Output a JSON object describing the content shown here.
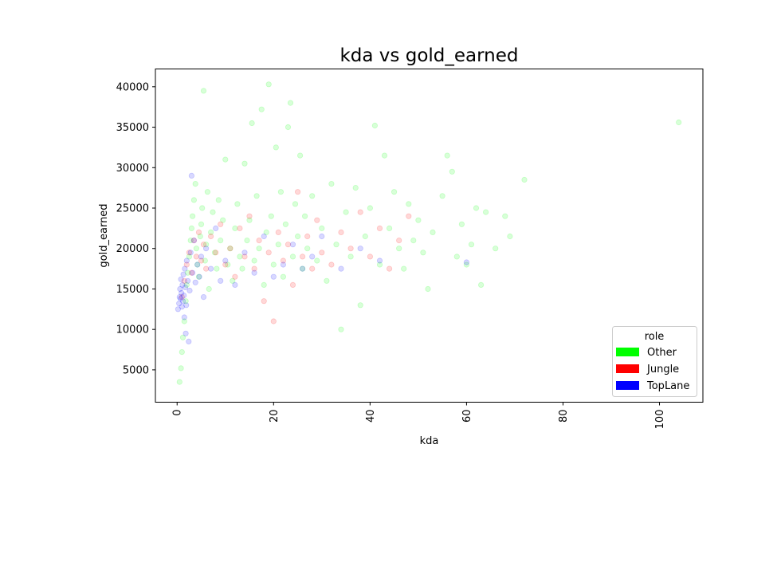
{
  "chart_data": {
    "type": "scatter",
    "title": "kda vs gold_earned",
    "xlabel": "kda",
    "ylabel": "gold_earned",
    "xlim": [
      -4.5,
      109
    ],
    "ylim": [
      1000,
      42200
    ],
    "xticks": [
      0,
      20,
      40,
      60,
      80,
      100
    ],
    "yticks": [
      5000,
      10000,
      15000,
      20000,
      25000,
      30000,
      35000,
      40000
    ],
    "legend": {
      "title": "role",
      "position": "lower right"
    },
    "marker_alpha": 0.07,
    "series": [
      {
        "name": "Other",
        "color": "#00ff00",
        "points": [
          [
            0.5,
            3500
          ],
          [
            0.8,
            5200
          ],
          [
            1.0,
            7200
          ],
          [
            1.2,
            9000
          ],
          [
            1.5,
            11000
          ],
          [
            1.8,
            13500
          ],
          [
            2.0,
            15500
          ],
          [
            2.2,
            17000
          ],
          [
            2.5,
            19000
          ],
          [
            2.8,
            21000
          ],
          [
            3.0,
            22500
          ],
          [
            3.2,
            24000
          ],
          [
            3.5,
            26000
          ],
          [
            3.8,
            28000
          ],
          [
            4.0,
            20000
          ],
          [
            4.2,
            18000
          ],
          [
            4.5,
            16500
          ],
          [
            4.8,
            21500
          ],
          [
            5.0,
            23000
          ],
          [
            5.2,
            25000
          ],
          [
            5.5,
            39500
          ],
          [
            5.8,
            18500
          ],
          [
            6.0,
            20500
          ],
          [
            6.3,
            27000
          ],
          [
            6.6,
            15000
          ],
          [
            7.0,
            22000
          ],
          [
            7.4,
            24500
          ],
          [
            7.8,
            19500
          ],
          [
            8.2,
            17500
          ],
          [
            8.6,
            26000
          ],
          [
            9.0,
            21000
          ],
          [
            9.5,
            23500
          ],
          [
            10.0,
            31000
          ],
          [
            10.5,
            18000
          ],
          [
            11.0,
            20000
          ],
          [
            11.5,
            16000
          ],
          [
            12.0,
            22500
          ],
          [
            12.5,
            25500
          ],
          [
            13.0,
            19000
          ],
          [
            13.5,
            17500
          ],
          [
            14.0,
            30500
          ],
          [
            14.5,
            21000
          ],
          [
            15.0,
            23500
          ],
          [
            15.5,
            35500
          ],
          [
            16.0,
            18500
          ],
          [
            16.5,
            26500
          ],
          [
            17.0,
            20000
          ],
          [
            17.5,
            37200
          ],
          [
            18.0,
            15500
          ],
          [
            18.5,
            22000
          ],
          [
            19.0,
            40300
          ],
          [
            19.5,
            24000
          ],
          [
            20.0,
            18000
          ],
          [
            20.5,
            32500
          ],
          [
            21.0,
            20500
          ],
          [
            21.5,
            27000
          ],
          [
            22.0,
            16500
          ],
          [
            22.5,
            23000
          ],
          [
            23.0,
            35000
          ],
          [
            23.5,
            38000
          ],
          [
            24.0,
            19000
          ],
          [
            24.5,
            25500
          ],
          [
            25.0,
            21500
          ],
          [
            25.5,
            31500
          ],
          [
            26.0,
            17500
          ],
          [
            26.5,
            24000
          ],
          [
            27.0,
            20000
          ],
          [
            28.0,
            26500
          ],
          [
            29.0,
            18500
          ],
          [
            30.0,
            22500
          ],
          [
            31.0,
            16000
          ],
          [
            32.0,
            28000
          ],
          [
            33.0,
            20500
          ],
          [
            34.0,
            10000
          ],
          [
            35.0,
            24500
          ],
          [
            36.0,
            19000
          ],
          [
            37.0,
            27500
          ],
          [
            38.0,
            13000
          ],
          [
            39.0,
            21500
          ],
          [
            40.0,
            25000
          ],
          [
            41.0,
            35200
          ],
          [
            42.0,
            18000
          ],
          [
            43.0,
            31500
          ],
          [
            44.0,
            22500
          ],
          [
            45.0,
            27000
          ],
          [
            46.0,
            20000
          ],
          [
            47.0,
            17500
          ],
          [
            48.0,
            25500
          ],
          [
            49.0,
            21000
          ],
          [
            50.0,
            23500
          ],
          [
            51.0,
            19500
          ],
          [
            52.0,
            15000
          ],
          [
            53.0,
            22000
          ],
          [
            55.0,
            26500
          ],
          [
            56.0,
            31500
          ],
          [
            57.0,
            29500
          ],
          [
            58.0,
            19000
          ],
          [
            59.0,
            23000
          ],
          [
            60.0,
            18000
          ],
          [
            61.0,
            20500
          ],
          [
            62.0,
            25000
          ],
          [
            63.0,
            15500
          ],
          [
            64.0,
            24500
          ],
          [
            66.0,
            20000
          ],
          [
            68.0,
            24000
          ],
          [
            69.0,
            21500
          ],
          [
            72.0,
            28500
          ],
          [
            104.0,
            35600
          ]
        ]
      },
      {
        "name": "Jungle",
        "color": "#ff0000",
        "points": [
          [
            1.0,
            14000
          ],
          [
            1.5,
            16000
          ],
          [
            2.0,
            18000
          ],
          [
            2.5,
            19500
          ],
          [
            3.0,
            17000
          ],
          [
            3.5,
            21000
          ],
          [
            4.0,
            19000
          ],
          [
            4.5,
            22000
          ],
          [
            5.0,
            18500
          ],
          [
            5.5,
            20500
          ],
          [
            6.0,
            17500
          ],
          [
            7.0,
            21500
          ],
          [
            8.0,
            19500
          ],
          [
            9.0,
            23000
          ],
          [
            10.0,
            18000
          ],
          [
            11.0,
            20000
          ],
          [
            12.0,
            16500
          ],
          [
            13.0,
            22500
          ],
          [
            14.0,
            19000
          ],
          [
            15.0,
            24000
          ],
          [
            16.0,
            17500
          ],
          [
            17.0,
            21000
          ],
          [
            18.0,
            13500
          ],
          [
            19.0,
            19500
          ],
          [
            20.0,
            11000
          ],
          [
            21.0,
            22000
          ],
          [
            22.0,
            18500
          ],
          [
            23.0,
            20500
          ],
          [
            24.0,
            15500
          ],
          [
            25.0,
            27000
          ],
          [
            26.0,
            19000
          ],
          [
            27.0,
            21500
          ],
          [
            28.0,
            17500
          ],
          [
            29.0,
            23500
          ],
          [
            30.0,
            19500
          ],
          [
            32.0,
            18000
          ],
          [
            34.0,
            22000
          ],
          [
            36.0,
            20000
          ],
          [
            38.0,
            24500
          ],
          [
            40.0,
            19000
          ],
          [
            42.0,
            22500
          ],
          [
            44.0,
            17500
          ],
          [
            46.0,
            21000
          ],
          [
            48.0,
            24000
          ]
        ]
      },
      {
        "name": "TopLane",
        "color": "#0000ff",
        "points": [
          [
            0.2,
            12500
          ],
          [
            0.4,
            13200
          ],
          [
            0.5,
            14000
          ],
          [
            0.6,
            15000
          ],
          [
            0.7,
            13800
          ],
          [
            0.8,
            16200
          ],
          [
            0.9,
            14500
          ],
          [
            1.0,
            12800
          ],
          [
            1.1,
            15500
          ],
          [
            1.2,
            13500
          ],
          [
            1.3,
            16800
          ],
          [
            1.4,
            14200
          ],
          [
            1.5,
            11500
          ],
          [
            1.6,
            17500
          ],
          [
            1.7,
            15200
          ],
          [
            1.8,
            9500
          ],
          [
            1.9,
            13000
          ],
          [
            2.0,
            18500
          ],
          [
            2.2,
            16000
          ],
          [
            2.4,
            8500
          ],
          [
            2.6,
            14800
          ],
          [
            2.8,
            19500
          ],
          [
            3.0,
            29000
          ],
          [
            3.2,
            17000
          ],
          [
            3.5,
            21000
          ],
          [
            3.8,
            15800
          ],
          [
            4.2,
            18000
          ],
          [
            4.6,
            16500
          ],
          [
            5.0,
            19000
          ],
          [
            5.5,
            14000
          ],
          [
            6.0,
            20000
          ],
          [
            7.0,
            17500
          ],
          [
            8.0,
            22500
          ],
          [
            9.0,
            16000
          ],
          [
            10.0,
            18500
          ],
          [
            12.0,
            15500
          ],
          [
            14.0,
            19500
          ],
          [
            16.0,
            17000
          ],
          [
            18.0,
            21500
          ],
          [
            20.0,
            16500
          ],
          [
            22.0,
            18000
          ],
          [
            24.0,
            20500
          ],
          [
            26.0,
            17500
          ],
          [
            28.0,
            19000
          ],
          [
            30.0,
            21500
          ],
          [
            34.0,
            17500
          ],
          [
            38.0,
            20000
          ],
          [
            42.0,
            18500
          ],
          [
            60.0,
            18300
          ]
        ]
      }
    ]
  }
}
